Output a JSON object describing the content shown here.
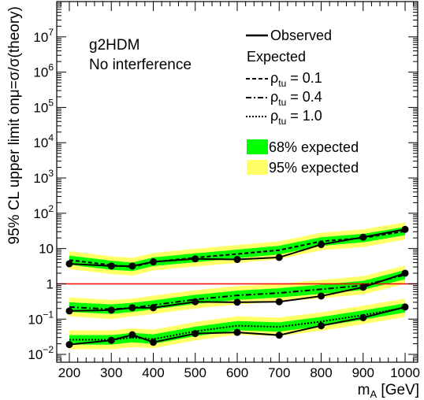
{
  "top_text": "",
  "chart_data": {
    "type": "line",
    "xlabel": "m_A [GeV]",
    "ylabel": "95% CL upper limit onμ=σ/σ(theory)",
    "xlim": [
      170,
      1030
    ],
    "ylim": [
      0.006,
      100000000
    ],
    "yscale": "log",
    "x_ticks": [
      200,
      300,
      400,
      500,
      600,
      700,
      800,
      900,
      1000
    ],
    "y_ticks": [
      {
        "value": 0.01,
        "label": "10^-2"
      },
      {
        "value": 0.1,
        "label": "10^-1"
      },
      {
        "value": 1,
        "label": "1"
      },
      {
        "value": 10,
        "label": "10"
      },
      {
        "value": 100,
        "label": "10^2"
      },
      {
        "value": 1000,
        "label": "10^3"
      },
      {
        "value": 10000,
        "label": "10^4"
      },
      {
        "value": 100000,
        "label": "10^5"
      },
      {
        "value": 1000000,
        "label": "10^6"
      },
      {
        "value": 10000000,
        "label": "10^7"
      }
    ],
    "annotations": [
      "g2HDM",
      "No interference"
    ],
    "reference_line": {
      "y": 1,
      "color": "#ff0000"
    },
    "band_colors": {
      "sigma1": "#00ff00",
      "sigma2": "#ffff00"
    },
    "legend": {
      "observed": "Observed",
      "expected_header": "Expected",
      "rho_symbol": "ρ",
      "rho_sub": "tu",
      "rho_values": [
        "= 0.1",
        "= 0.4",
        "= 1.0"
      ],
      "band68": "68% expected",
      "band95": "95% expected"
    },
    "x": [
      200,
      300,
      350,
      400,
      500,
      600,
      700,
      800,
      900,
      1000
    ],
    "series": [
      {
        "name": "ρ_tu = 0.1",
        "dash": "dashed",
        "observed": [
          3.7,
          3.2,
          3.2,
          4.2,
          5.1,
          4.9,
          5.6,
          13,
          21,
          35
        ],
        "expected": [
          4.7,
          3.4,
          3.0,
          4.2,
          5.5,
          7.0,
          9.0,
          16,
          20,
          31
        ],
        "band68": [
          [
            3.5,
            6.3
          ],
          [
            2.5,
            4.5
          ],
          [
            2.3,
            4.0
          ],
          [
            3.2,
            5.6
          ],
          [
            4.1,
            7.3
          ],
          [
            5.3,
            9.3
          ],
          [
            6.8,
            12
          ],
          [
            12,
            21
          ],
          [
            15,
            26
          ],
          [
            24,
            41
          ]
        ],
        "band95": [
          [
            2.6,
            8.4
          ],
          [
            1.9,
            6.0
          ],
          [
            1.7,
            5.4
          ],
          [
            2.4,
            7.5
          ],
          [
            3.1,
            9.8
          ],
          [
            3.9,
            12.5
          ],
          [
            5.0,
            16
          ],
          [
            9,
            28
          ],
          [
            11,
            35
          ],
          [
            18,
            55
          ]
        ]
      },
      {
        "name": "ρ_tu = 0.4",
        "dash": "dashdot",
        "observed": [
          0.17,
          0.18,
          0.21,
          0.21,
          0.31,
          0.3,
          0.31,
          0.45,
          0.8,
          2.0
        ],
        "expected": [
          0.22,
          0.19,
          0.21,
          0.25,
          0.36,
          0.47,
          0.55,
          0.7,
          0.9,
          1.8
        ],
        "band68": [
          [
            0.16,
            0.3
          ],
          [
            0.14,
            0.26
          ],
          [
            0.16,
            0.29
          ],
          [
            0.19,
            0.34
          ],
          [
            0.27,
            0.49
          ],
          [
            0.35,
            0.64
          ],
          [
            0.41,
            0.75
          ],
          [
            0.52,
            0.95
          ],
          [
            0.67,
            1.22
          ],
          [
            1.35,
            2.45
          ]
        ],
        "band95": [
          [
            0.12,
            0.41
          ],
          [
            0.1,
            0.35
          ],
          [
            0.12,
            0.38
          ],
          [
            0.14,
            0.46
          ],
          [
            0.2,
            0.66
          ],
          [
            0.26,
            0.86
          ],
          [
            0.31,
            1.0
          ],
          [
            0.39,
            1.28
          ],
          [
            0.5,
            1.65
          ],
          [
            1.0,
            3.3
          ]
        ]
      },
      {
        "name": "ρ_tu = 1.0",
        "dash": "dotted",
        "observed": [
          0.019,
          0.025,
          0.036,
          0.022,
          0.039,
          0.042,
          0.035,
          0.065,
          0.11,
          0.22
        ],
        "expected": [
          0.026,
          0.026,
          0.03,
          0.027,
          0.045,
          0.065,
          0.06,
          0.085,
          0.13,
          0.21
        ],
        "band68": [
          [
            0.019,
            0.035
          ],
          [
            0.019,
            0.035
          ],
          [
            0.022,
            0.041
          ],
          [
            0.02,
            0.037
          ],
          [
            0.033,
            0.061
          ],
          [
            0.048,
            0.088
          ],
          [
            0.044,
            0.081
          ],
          [
            0.063,
            0.115
          ],
          [
            0.096,
            0.176
          ],
          [
            0.155,
            0.28
          ]
        ],
        "band95": [
          [
            0.014,
            0.048
          ],
          [
            0.014,
            0.048
          ],
          [
            0.016,
            0.055
          ],
          [
            0.015,
            0.05
          ],
          [
            0.025,
            0.083
          ],
          [
            0.036,
            0.12
          ],
          [
            0.033,
            0.11
          ],
          [
            0.047,
            0.155
          ],
          [
            0.072,
            0.24
          ],
          [
            0.115,
            0.38
          ]
        ]
      }
    ]
  }
}
